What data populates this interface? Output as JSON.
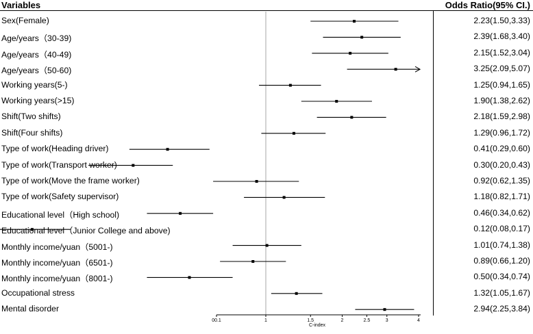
{
  "header": {
    "left": "Variables",
    "right": "Odds Ratio(95% CI.)"
  },
  "chart_data": {
    "type": "forest",
    "title": "",
    "xlabel": "C-index",
    "ylabel": "",
    "x_scale": "log",
    "xlim": [
      0.1,
      4
    ],
    "reference_line": 1,
    "x_ticks": [
      {
        "value": 0.1,
        "label": "00.1"
      },
      {
        "value": 1,
        "label": "1"
      },
      {
        "value": 1.5,
        "label": "1.5"
      },
      {
        "value": 2,
        "label": "2"
      },
      {
        "value": 2.5,
        "label": "2.5"
      },
      {
        "value": 3,
        "label": "3"
      },
      {
        "value": 4,
        "label": "4"
      }
    ],
    "grid": false,
    "rows": [
      {
        "label": "Sex(Female)",
        "or": 2.23,
        "lo": 1.5,
        "hi": 3.33,
        "text": "2.23(1.50,3.33)"
      },
      {
        "label": "Age/years（30-39)",
        "or": 2.39,
        "lo": 1.68,
        "hi": 3.4,
        "text": "2.39(1.68,3.40)"
      },
      {
        "label": "Age/years（40-49)",
        "or": 2.15,
        "lo": 1.52,
        "hi": 3.04,
        "text": "2.15(1.52,3.04)"
      },
      {
        "label": "Age/years（50-60)",
        "or": 3.25,
        "lo": 2.09,
        "hi": 5.07,
        "text": "3.25(2.09,5.07)"
      },
      {
        "label": "Working years(5-)",
        "or": 1.25,
        "lo": 0.94,
        "hi": 1.65,
        "text": "1.25(0.94,1.65)"
      },
      {
        "label": "Working years(>15)",
        "or": 1.9,
        "lo": 1.38,
        "hi": 2.62,
        "text": "1.90(1.38,2.62)"
      },
      {
        "label": "Shift(Two shifts)",
        "or": 2.18,
        "lo": 1.59,
        "hi": 2.98,
        "text": "2.18(1.59,2.98)"
      },
      {
        "label": "Shift(Four shifts)",
        "or": 1.29,
        "lo": 0.96,
        "hi": 1.72,
        "text": "1.29(0.96,1.72)"
      },
      {
        "label": "Type of work(Heading driver)",
        "or": 0.41,
        "lo": 0.29,
        "hi": 0.6,
        "text": "0.41(0.29,0.60)"
      },
      {
        "label": "Type of work(Transport worker)",
        "or": 0.3,
        "lo": 0.2,
        "hi": 0.43,
        "text": "0.30(0.20,0.43)"
      },
      {
        "label": "Type of work(Move the frame worker)",
        "or": 0.92,
        "lo": 0.62,
        "hi": 1.35,
        "text": "0.92(0.62,1.35)"
      },
      {
        "label": "Type of work(Safety supervisor)",
        "or": 1.18,
        "lo": 0.82,
        "hi": 1.71,
        "text": "1.18(0.82,1.71)"
      },
      {
        "label": "Educational level（High school)",
        "or": 0.46,
        "lo": 0.34,
        "hi": 0.62,
        "text": "0.46(0.34,0.62)"
      },
      {
        "label": "Educational level（Junior College and above)",
        "or": 0.12,
        "lo": 0.08,
        "hi": 0.17,
        "text": "0.12(0.08,0.17)"
      },
      {
        "label": "Monthly income/yuan（5001-)",
        "or": 1.01,
        "lo": 0.74,
        "hi": 1.38,
        "text": "1.01(0.74,1.38)"
      },
      {
        "label": "Monthly income/yuan（6501-)",
        "or": 0.89,
        "lo": 0.66,
        "hi": 1.2,
        "text": "0.89(0.66,1.20)"
      },
      {
        "label": "Monthly income/yuan（8001-)",
        "or": 0.5,
        "lo": 0.34,
        "hi": 0.74,
        "text": "0.50(0.34,0.74)"
      },
      {
        "label": "Occupational stress",
        "or": 1.32,
        "lo": 1.05,
        "hi": 1.67,
        "text": "1.32(1.05,1.67)"
      },
      {
        "label": "Mental disorder",
        "or": 2.94,
        "lo": 2.25,
        "hi": 3.84,
        "text": "2.94(2.25,3.84)"
      }
    ]
  }
}
